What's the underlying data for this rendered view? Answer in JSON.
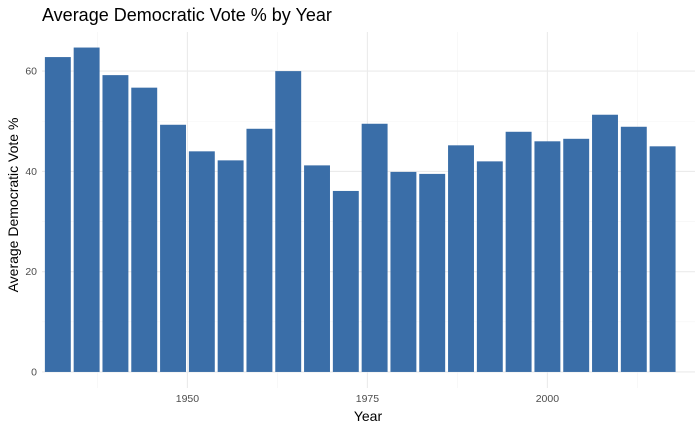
{
  "chart_data": {
    "type": "bar",
    "title": "Average Democratic Vote % by Year",
    "xlabel": "Year",
    "ylabel": "Average Democratic Vote %",
    "x": [
      1932,
      1936,
      1940,
      1944,
      1948,
      1952,
      1956,
      1960,
      1964,
      1968,
      1972,
      1976,
      1980,
      1984,
      1988,
      1992,
      1996,
      2000,
      2004,
      2008,
      2012,
      2016
    ],
    "values": [
      62.8,
      64.7,
      59.2,
      56.7,
      49.3,
      44.0,
      42.2,
      48.5,
      60.0,
      41.2,
      36.1,
      49.5,
      39.9,
      39.5,
      45.2,
      42.0,
      47.9,
      46.0,
      46.5,
      51.3,
      48.9,
      45.0
    ],
    "xlim": [
      1929.8,
      2020.5
    ],
    "ylim": [
      -3.2,
      67.8
    ],
    "x_ticks": [
      1950,
      1975,
      2000
    ],
    "x_tick_labels": [
      "1950",
      "1975",
      "2000"
    ],
    "y_ticks": [
      0,
      20,
      40,
      60
    ],
    "y_tick_labels": [
      "0",
      "20",
      "40",
      "60"
    ],
    "bar_color": "#3A6EA8",
    "grid": true,
    "legend": "none"
  }
}
